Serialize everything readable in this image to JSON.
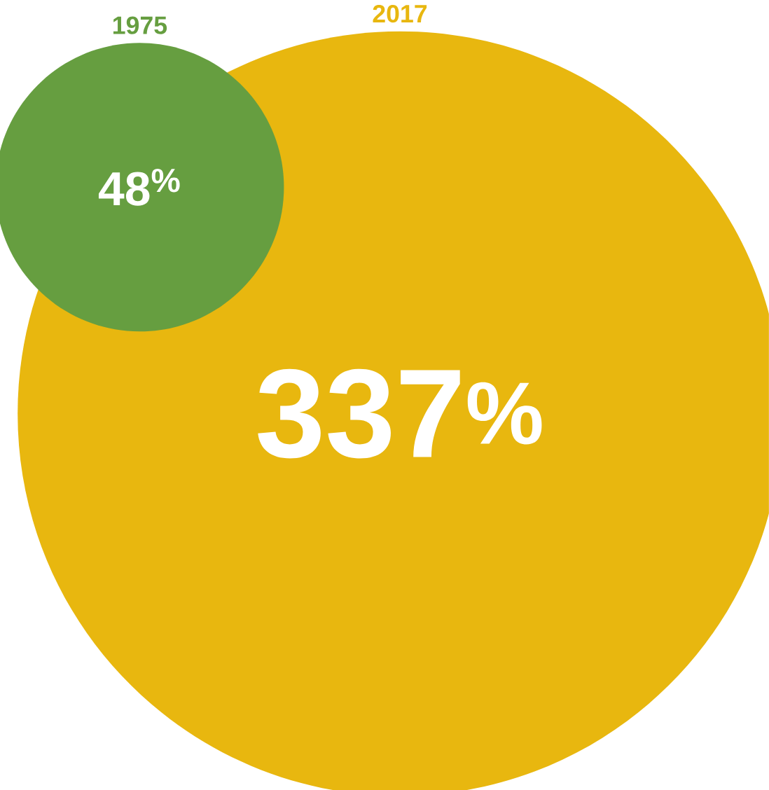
{
  "chart_data": {
    "type": "other",
    "categories": [
      "1975",
      "2017"
    ],
    "values": [
      48,
      337
    ],
    "colors": [
      "#669e40",
      "#e8b70f"
    ],
    "value_labels": [
      "48$^{%}$",
      "337$^{%}$"
    ]
  }
}
